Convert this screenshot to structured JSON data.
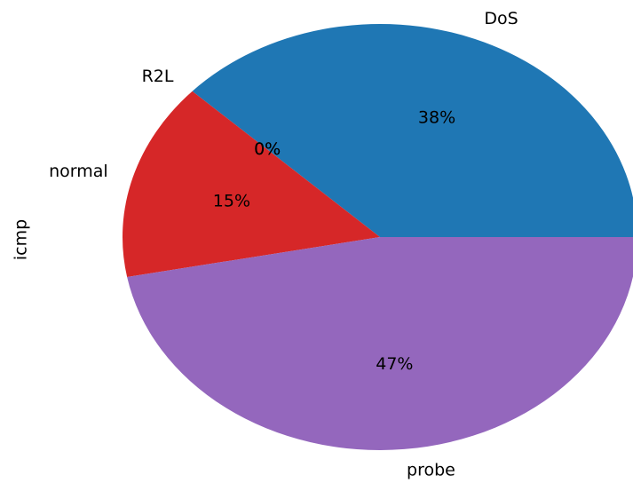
{
  "chart_data": {
    "type": "pie",
    "ylabel": "icmp",
    "categories": [
      "DoS",
      "R2L",
      null,
      "normal",
      "probe"
    ],
    "values": [
      38,
      0,
      0,
      15,
      47
    ],
    "value_labels": [
      "38%",
      "0%",
      "0%",
      "15%",
      "47%"
    ],
    "colors": [
      "#1f77b4",
      "#ff7f0e",
      "#2ca02c",
      "#d62728",
      "#9467bd"
    ]
  }
}
